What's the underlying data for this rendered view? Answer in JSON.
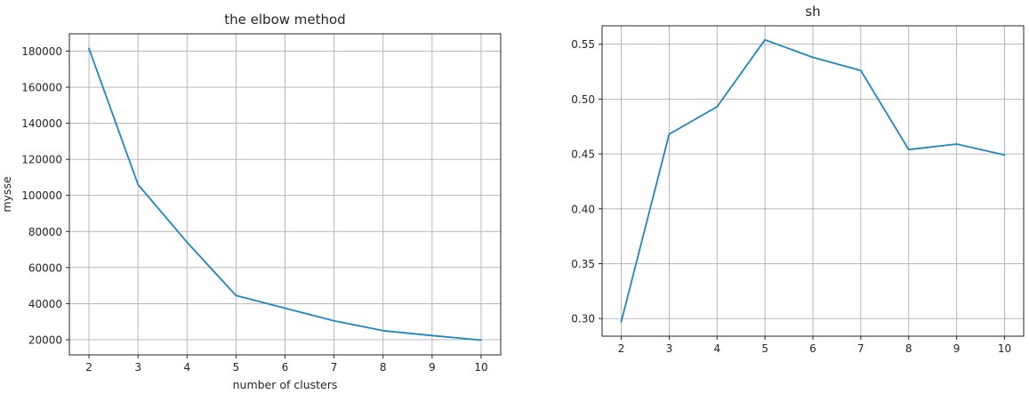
{
  "colors": {
    "line": "#1f86c1"
  },
  "chart_data": [
    {
      "type": "line",
      "title": "the elbow method",
      "xlabel": "number of clusters",
      "ylabel": "mysse",
      "grid": true,
      "x": [
        2,
        3,
        4,
        5,
        6,
        7,
        8,
        9,
        10
      ],
      "series": [
        {
          "values": [
            181500,
            106000,
            74000,
            44500,
            37500,
            30500,
            25000,
            22300,
            19800
          ]
        }
      ],
      "xlim": [
        1.6,
        10.4
      ],
      "ylim": [
        11600,
        189600
      ],
      "xticks": [
        2,
        3,
        4,
        5,
        6,
        7,
        8,
        9,
        10
      ],
      "yticks": [
        20000,
        40000,
        60000,
        80000,
        100000,
        120000,
        140000,
        160000,
        180000
      ]
    },
    {
      "type": "line",
      "title": "sh",
      "xlabel": "",
      "ylabel": "",
      "grid": true,
      "x": [
        2,
        3,
        4,
        5,
        6,
        7,
        8,
        9,
        10
      ],
      "series": [
        {
          "values": [
            0.297,
            0.468,
            0.493,
            0.554,
            0.538,
            0.526,
            0.454,
            0.459,
            0.449
          ]
        }
      ],
      "xlim": [
        1.6,
        10.4
      ],
      "ylim": [
        0.2839,
        0.5668
      ],
      "xticks": [
        2,
        3,
        4,
        5,
        6,
        7,
        8,
        9,
        10
      ],
      "yticks": [
        "0.30",
        "0.35",
        "0.40",
        "0.45",
        "0.50",
        "0.55"
      ]
    }
  ]
}
